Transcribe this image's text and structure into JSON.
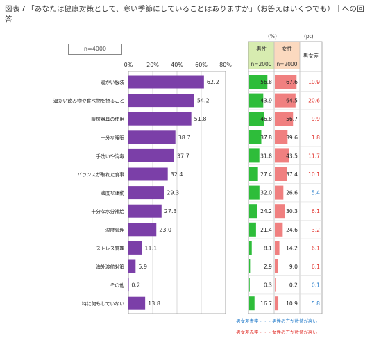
{
  "title": "図表７「あなたは健康対策として、寒い季節にしていることはありますか」（お答えはいくつでも）｜への回答",
  "n_label": "n=4000",
  "unit_percent": "(%)",
  "unit_pt": "(pt)",
  "headers": {
    "male": "男性",
    "male_n": "n=2000",
    "female": "女性",
    "female_n": "n=2000",
    "diff": "男女差"
  },
  "colors": {
    "bar": "#7b3fa8",
    "male_fill": "#2ebd3a",
    "female_fill": "#f08080",
    "male_header_bg": "#d7ecb0",
    "female_header_bg": "#fbd9bf",
    "diff_blue": "#1f78c8",
    "diff_red": "#e0302a"
  },
  "legend": {
    "blue": "男女差青字・・・男性の方が数値が高い",
    "red": "男女差赤字・・・女性の方が数値が高い"
  },
  "chart_data": {
    "type": "bar",
    "orientation": "horizontal",
    "xlim": [
      0,
      80
    ],
    "ticks": [
      "0%",
      "20%",
      "40%",
      "60%",
      "80%"
    ],
    "categories": [
      "暖かい服装",
      "温かい飲み物や食べ物を摂ること",
      "暖房器具の使用",
      "十分な睡眠",
      "手洗いや消毒",
      "バランスが取れた食事",
      "適度な運動",
      "十分な水分補給",
      "湿度管理",
      "ストレス管理",
      "海外渡航対策",
      "その他",
      "特に何もしていない"
    ],
    "values": [
      62.2,
      54.2,
      51.8,
      38.7,
      37.7,
      32.4,
      29.3,
      27.3,
      23.0,
      11.1,
      5.9,
      0.2,
      13.8
    ],
    "value_labels": [
      "62.2",
      "54.2",
      "51.8",
      "38.7",
      "37.7",
      "32.4",
      "29.3",
      "27.3",
      "23.0",
      "11.1",
      "5.9",
      "0.2",
      "13.8"
    ],
    "male": [
      56.8,
      43.9,
      46.8,
      37.8,
      31.8,
      27.4,
      32.0,
      24.2,
      21.4,
      8.1,
      2.9,
      0.3,
      16.7
    ],
    "male_labels": [
      "56.8",
      "43.9",
      "46.8",
      "37.8",
      "31.8",
      "27.4",
      "32.0",
      "24.2",
      "21.4",
      "8.1",
      "2.9",
      "0.3",
      "16.7"
    ],
    "female": [
      67.6,
      64.5,
      56.7,
      39.6,
      43.5,
      37.4,
      26.6,
      30.3,
      24.6,
      14.2,
      9.0,
      0.2,
      10.9
    ],
    "female_labels": [
      "67.6",
      "64.5",
      "56.7",
      "39.6",
      "43.5",
      "37.4",
      "26.6",
      "30.3",
      "24.6",
      "14.2",
      "9.0",
      "0.2",
      "10.9"
    ],
    "diff": [
      "10.9",
      "20.6",
      "9.9",
      "1.8",
      "11.7",
      "10.1",
      "5.4",
      "6.1",
      "3.2",
      "6.1",
      "6.1",
      "0.1",
      "5.8"
    ],
    "diff_side": [
      "female",
      "female",
      "female",
      "female",
      "female",
      "female",
      "male",
      "female",
      "female",
      "female",
      "female",
      "male",
      "male"
    ]
  }
}
